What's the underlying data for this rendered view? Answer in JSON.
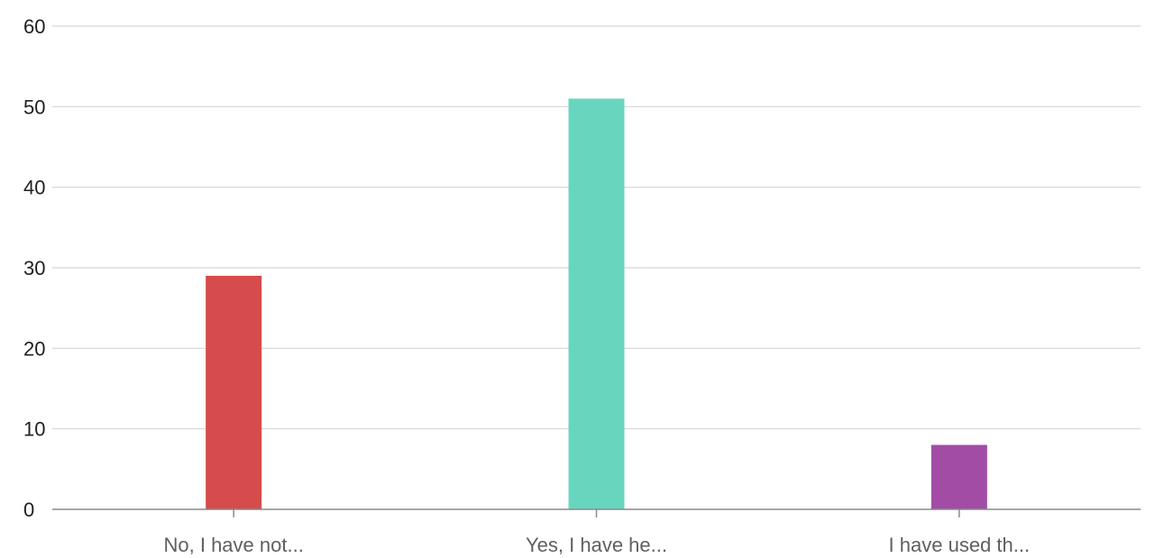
{
  "chart_data": {
    "type": "bar",
    "title": "",
    "xlabel": "",
    "ylabel": "",
    "categories": [
      "No, I have not...",
      "Yes, I have he...",
      "I have used th..."
    ],
    "values": [
      29,
      51,
      8
    ],
    "colors": [
      "#d64b4b",
      "#68d6bf",
      "#a24ca6"
    ],
    "ylim": [
      0,
      60
    ],
    "yticks": [
      0,
      10,
      20,
      30,
      40,
      50,
      60
    ],
    "grid": true,
    "legend": "none"
  }
}
